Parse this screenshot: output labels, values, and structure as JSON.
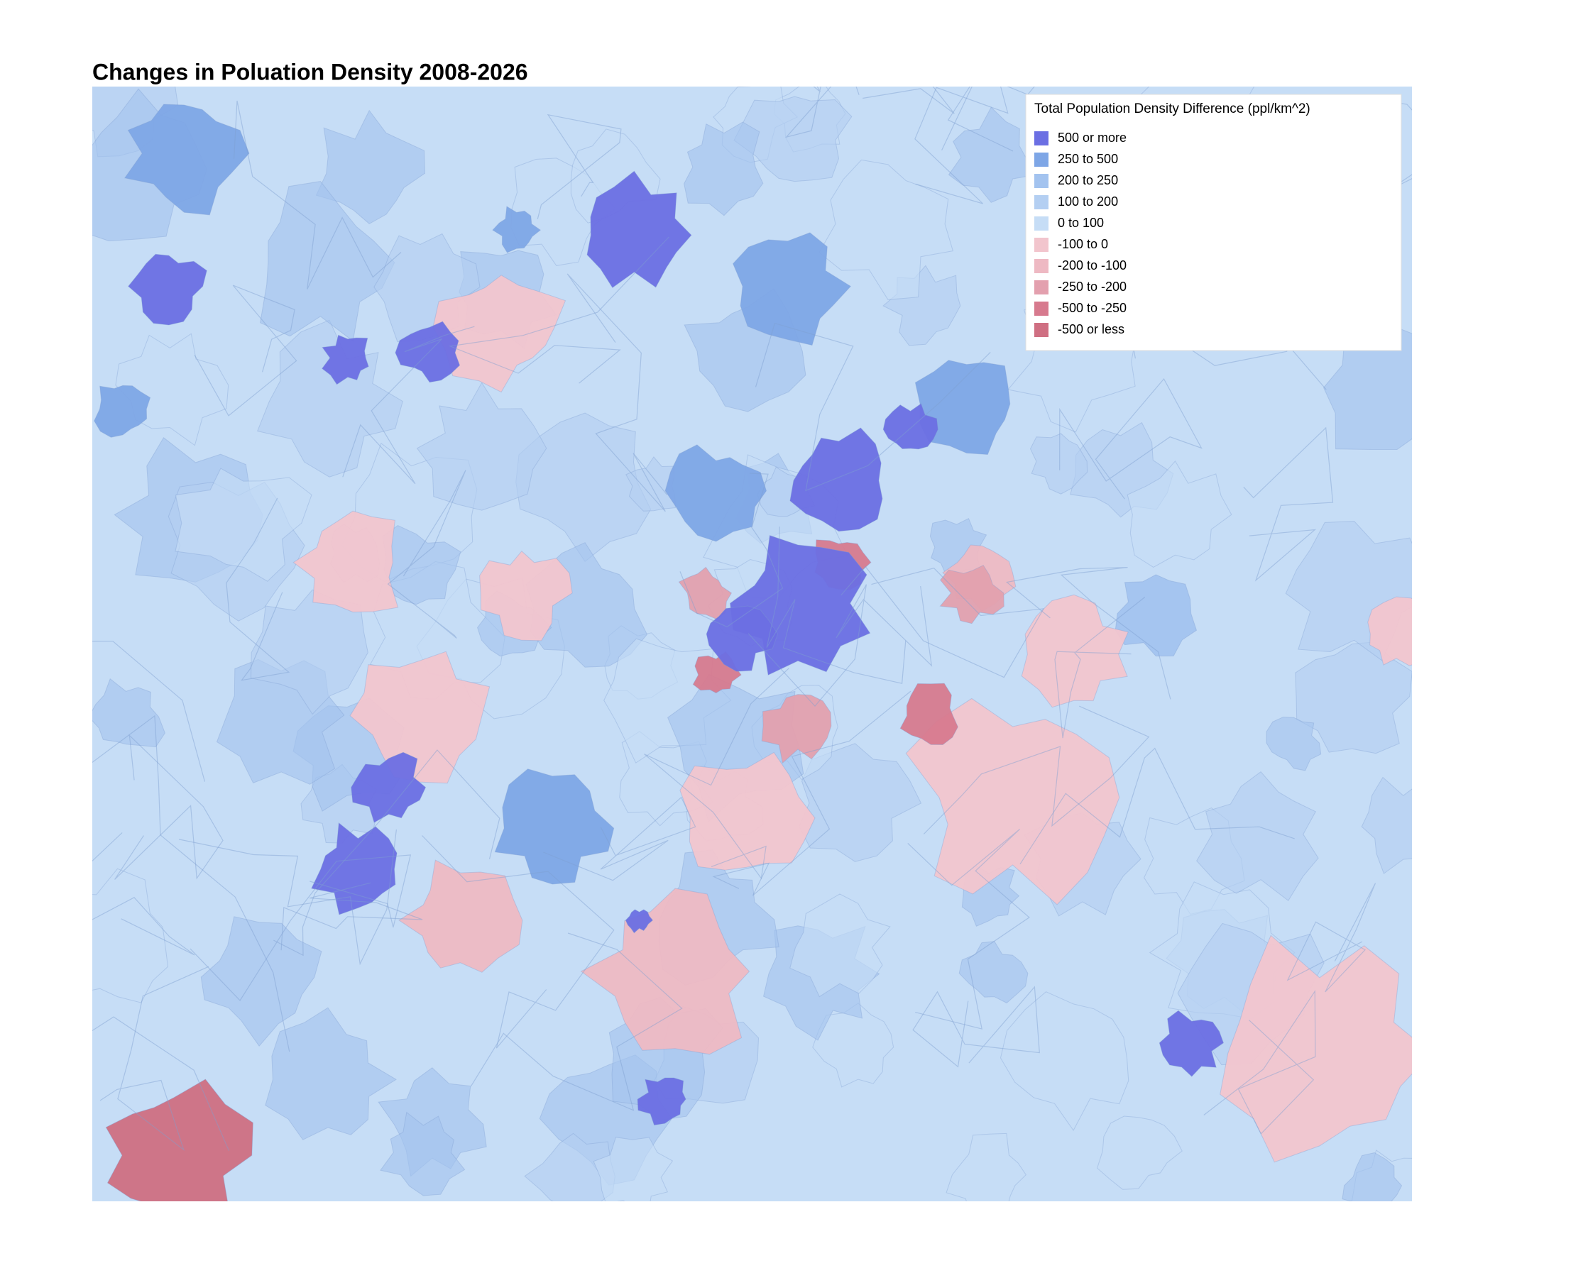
{
  "title": "Changes in Poluation Density 2008-2026",
  "legend": {
    "title": "Total Population Density Difference (ppl/km^2)",
    "items": [
      {
        "label": "500 or more",
        "color": "#6b6fe3"
      },
      {
        "label": "250 to 500",
        "color": "#7ea6e6"
      },
      {
        "label": "200 to 250",
        "color": "#a3c3ef"
      },
      {
        "label": "100 to 200",
        "color": "#b4cff2"
      },
      {
        "label": "0 to 100",
        "color": "#c6ddf6"
      },
      {
        "label": "-100 to 0",
        "color": "#f2c5cd"
      },
      {
        "label": "-200 to -100",
        "color": "#eeb9c3"
      },
      {
        "label": "-250 to -200",
        "color": "#e3a0ae"
      },
      {
        "label": "-500 to -250",
        "color": "#d77a8e"
      },
      {
        "label": "-500 or less",
        "color": "#cf6f82"
      }
    ]
  }
}
